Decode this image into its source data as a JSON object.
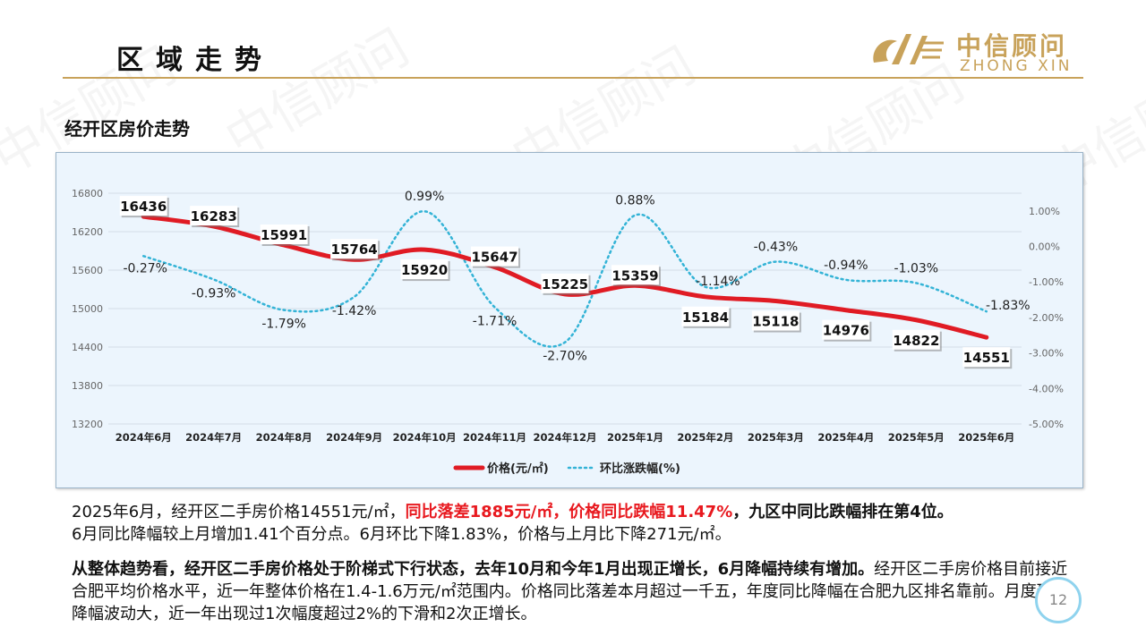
{
  "header": {
    "section_title": "区域走势",
    "logo_cn": "中信顾问",
    "logo_en": "ZHONG XIN"
  },
  "watermark": "中信顾问",
  "subtitle": "经开区房价走势",
  "colors": {
    "price_line": "#e01b24",
    "mom_line": "#33b3d6",
    "accent_gold": "#c8a25a",
    "highlight_red": "#e8191f"
  },
  "chart_data": {
    "type": "line",
    "categories": [
      "2024年6月",
      "2024年7月",
      "2024年8月",
      "2024年9月",
      "2024年10月",
      "2024年11月",
      "2024年12月",
      "2025年1月",
      "2025年2月",
      "2025年3月",
      "2025年4月",
      "2025年5月",
      "2025年6月"
    ],
    "series": [
      {
        "name": "价格(元/㎡)",
        "axis": "left",
        "style": "solid",
        "values": [
          16436,
          16283,
          15991,
          15764,
          15920,
          15647,
          15225,
          15359,
          15184,
          15118,
          14976,
          14822,
          14551
        ],
        "labels": [
          "16436",
          "16283",
          "15991",
          "15764",
          "15920",
          "15647",
          "15225",
          "15359",
          "15184",
          "15118",
          "14976",
          "14822",
          "14551"
        ]
      },
      {
        "name": "环比涨跌幅(%)",
        "axis": "right",
        "style": "dotted",
        "values": [
          -0.27,
          -0.93,
          -1.79,
          -1.42,
          0.99,
          -1.71,
          -2.7,
          0.88,
          -1.14,
          -0.43,
          -0.94,
          -1.03,
          -1.83
        ],
        "labels": [
          "-0.27%",
          "-0.93%",
          "-1.79%",
          "-1.42%",
          "0.99%",
          "-1.71%",
          "-2.70%",
          "0.88%",
          "-1.14%",
          "-0.43%",
          "-0.94%",
          "-1.03%",
          "-1.83%"
        ]
      }
    ],
    "y_left": {
      "min": 13200,
      "max": 16800,
      "ticks": [
        "13200",
        "13800",
        "14400",
        "15000",
        "15600",
        "16200",
        "16800"
      ]
    },
    "y_right": {
      "min": -5,
      "max": 1.5,
      "ticks": [
        "1.00%",
        "0.00%",
        "-1.00%",
        "-2.00%",
        "-3.00%",
        "-4.00%",
        "-5.00%"
      ],
      "tick_values": [
        1,
        0,
        -1,
        -2,
        -3,
        -4,
        -5
      ]
    },
    "grid": true,
    "legend": "bottom"
  },
  "paragraph1": {
    "part1": "2025年6月，经开区二手房价格14551元/㎡，",
    "part2_red": "同比落差1885元/㎡，价格同比跌幅11.47%",
    "part3_bold": "，九区中同比跌幅排在第4位。",
    "part4": "6月同比降幅较上月增加1.41个百分点。6月环比下降1.83%，价格与上月比下降271元/㎡。"
  },
  "paragraph2": {
    "part1_bold": "从整体趋势看，经开区二手房价格处于阶梯式下行状态，去年10月和今年1月出现正增长，6月降幅持续有增加。",
    "part2": "经开区二手房价格目前接近合肥平均价格水平，近一年整体价格在1.4-1.6万元/㎡范围内。价格同比落差本月超过一千五，年度同比降幅在合肥九区排名靠前。月度环比降幅波动大，近一年出现过1次幅度超过2%的下滑和2次正增长。"
  },
  "page_number": "12"
}
